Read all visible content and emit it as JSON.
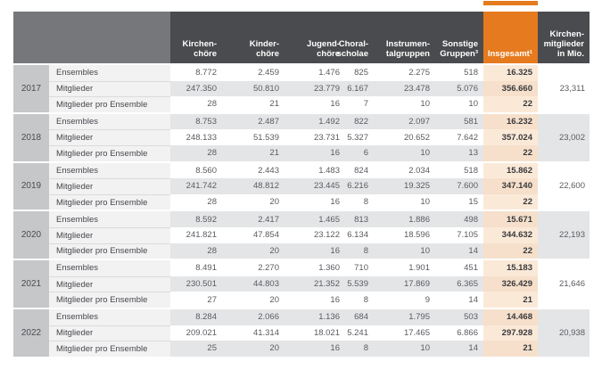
{
  "colors": {
    "accent_orange": "#E67A1E",
    "header_dark": "#4A4B4E",
    "header_left_gray": "#76777B",
    "row_gray": "#E4E5E7",
    "year_column_gray": "#C6C7C9",
    "insgesamt_tint": "#FBE9D8"
  },
  "table": {
    "column_headers": [
      "Kirchen-\nchöre",
      "Kinder-\nchöre",
      "Jugend-\nchöre",
      "Choral-\nscholae",
      "Instrumen-\ntalgruppen",
      "Sonstige\nGruppen³",
      "Insgesamt¹",
      "Kirchen-\nmitglieder\nin Mio."
    ],
    "row_labels": [
      "Ensembles",
      "Mitglieder",
      "Mitglieder pro Ensemble"
    ],
    "groups": [
      {
        "year": "2017",
        "kirchenmitglieder": "23,311",
        "rows": [
          {
            "label": "Ensembles",
            "values": [
              "8.772",
              "2.459",
              "1.476",
              "825",
              "2.275",
              "518"
            ],
            "total": "16.325"
          },
          {
            "label": "Mitglieder",
            "values": [
              "247.350",
              "50.810",
              "23.779",
              "6.167",
              "23.478",
              "5.076"
            ],
            "total": "356.660"
          },
          {
            "label": "Mitglieder pro Ensemble",
            "values": [
              "28",
              "21",
              "16",
              "7",
              "10",
              "10"
            ],
            "total": "22"
          }
        ]
      },
      {
        "year": "2018",
        "kirchenmitglieder": "23,002",
        "rows": [
          {
            "label": "Ensembles",
            "values": [
              "8.753",
              "2.487",
              "1.492",
              "822",
              "2.097",
              "581"
            ],
            "total": "16.232"
          },
          {
            "label": "Mitglieder",
            "values": [
              "248.133",
              "51.539",
              "23.731",
              "5.327",
              "20.652",
              "7.642"
            ],
            "total": "357.024"
          },
          {
            "label": "Mitglieder pro Ensemble",
            "values": [
              "28",
              "21",
              "16",
              "6",
              "10",
              "13"
            ],
            "total": "22"
          }
        ]
      },
      {
        "year": "2019",
        "kirchenmitglieder": "22,600",
        "rows": [
          {
            "label": "Ensembles",
            "values": [
              "8.560",
              "2.443",
              "1.483",
              "824",
              "2.034",
              "518"
            ],
            "total": "15.862"
          },
          {
            "label": "Mitglieder",
            "values": [
              "241.742",
              "48.812",
              "23.445",
              "6.216",
              "19.325",
              "7.600"
            ],
            "total": "347.140"
          },
          {
            "label": "Mitglieder pro Ensemble",
            "values": [
              "28",
              "20",
              "16",
              "8",
              "10",
              "15"
            ],
            "total": "22"
          }
        ]
      },
      {
        "year": "2020",
        "kirchenmitglieder": "22,193",
        "rows": [
          {
            "label": "Ensembles",
            "values": [
              "8.592",
              "2.417",
              "1.465",
              "813",
              "1.886",
              "498"
            ],
            "total": "15.671"
          },
          {
            "label": "Mitglieder",
            "values": [
              "241.821",
              "47.854",
              "23.122",
              "6.134",
              "18.596",
              "7.105"
            ],
            "total": "344.632"
          },
          {
            "label": "Mitglieder pro Ensemble",
            "values": [
              "28",
              "20",
              "16",
              "8",
              "10",
              "14"
            ],
            "total": "22"
          }
        ]
      },
      {
        "year": "2021",
        "kirchenmitglieder": "21,646",
        "rows": [
          {
            "label": "Ensembles",
            "values": [
              "8.491",
              "2.270",
              "1.360",
              "710",
              "1.901",
              "451"
            ],
            "total": "15.183"
          },
          {
            "label": "Mitglieder",
            "values": [
              "230.501",
              "44.803",
              "21.352",
              "5.539",
              "17.869",
              "6.365"
            ],
            "total": "326.429"
          },
          {
            "label": "Mitglieder pro Ensemble",
            "values": [
              "27",
              "20",
              "16",
              "8",
              "9",
              "14"
            ],
            "total": "21"
          }
        ]
      },
      {
        "year": "2022",
        "kirchenmitglieder": "20,938",
        "rows": [
          {
            "label": "Ensembles",
            "values": [
              "8.284",
              "2.066",
              "1.136",
              "684",
              "1.795",
              "503"
            ],
            "total": "14.468"
          },
          {
            "label": "Mitglieder",
            "values": [
              "209.021",
              "41.314",
              "18.021",
              "5.241",
              "17.465",
              "6.866"
            ],
            "total": "297.928"
          },
          {
            "label": "Mitglieder pro Ensemble",
            "values": [
              "25",
              "20",
              "16",
              "8",
              "10",
              "14"
            ],
            "total": "21"
          }
        ]
      }
    ]
  }
}
